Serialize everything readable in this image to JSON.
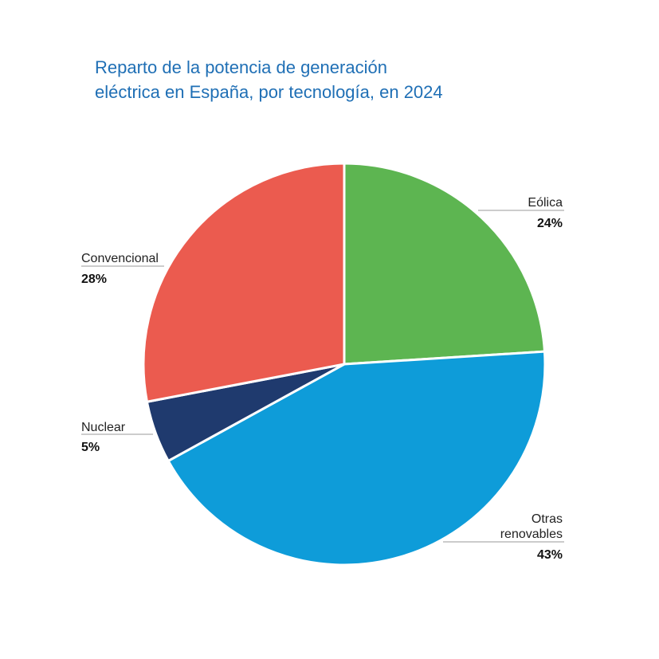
{
  "chart_data": {
    "type": "pie",
    "title": "Reparto de la potencia de generación eléctrica en España, por tecnología, en 2024",
    "title_lines": [
      "Reparto de la potencia de generación",
      "eléctrica en España, por tecnología, en 2024"
    ],
    "slices": [
      {
        "label": "Eólica",
        "label_lines": [
          "Eólica"
        ],
        "value": 24,
        "value_label": "24%",
        "color": "#5db551"
      },
      {
        "label": "Otras renovables",
        "label_lines": [
          "Otras",
          "renovables"
        ],
        "value": 43,
        "value_label": "43%",
        "color": "#0e9cd9"
      },
      {
        "label": "Nuclear",
        "label_lines": [
          "Nuclear"
        ],
        "value": 5,
        "value_label": "5%",
        "color": "#1f3a6e"
      },
      {
        "label": "Convencional",
        "label_lines": [
          "Convencional"
        ],
        "value": 28,
        "value_label": "28%",
        "color": "#eb5b4f"
      }
    ]
  }
}
